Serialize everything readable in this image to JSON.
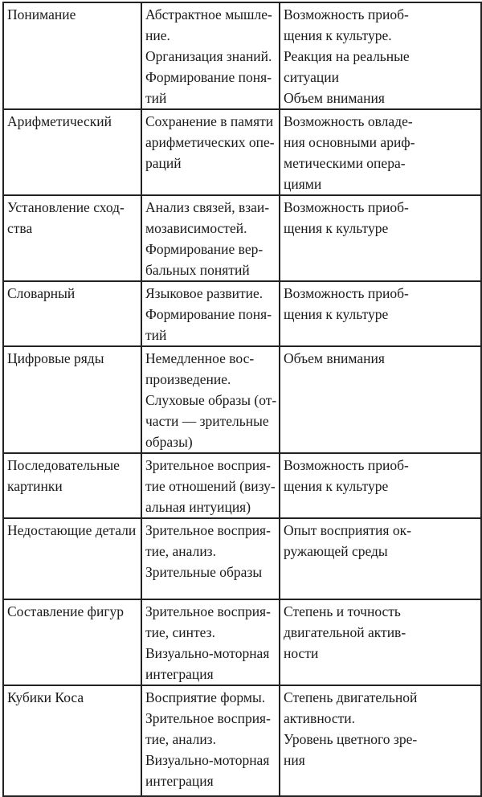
{
  "table": {
    "rows": [
      {
        "c1": [
          "Понимание"
        ],
        "c2": [
          "Абстрактное мышле-",
          "ние.",
          "Организация знаний.",
          "Формирование поня-",
          "тий"
        ],
        "c3": [
          "Возможность приоб-",
          "щения к культуре.",
          "Реакция на реальные",
          "ситуации",
          "Объем внимания"
        ]
      },
      {
        "c1": [
          "Арифметический"
        ],
        "c2": [
          "Сохранение в памяти",
          "арифметических опе-",
          "раций"
        ],
        "c3": [
          "Возможность овладе-",
          "ния основными ариф-",
          "метическими опера-",
          "циями"
        ]
      },
      {
        "c1": [
          "Установление сход-",
          "ства"
        ],
        "c2": [
          "Анализ связей, взаи-",
          "мозависимостей.",
          "Формирование вер-",
          "бальных понятий"
        ],
        "c3": [
          "Возможность приоб-",
          "щения к культуре"
        ]
      },
      {
        "c1": [
          "Словарный"
        ],
        "c2": [
          "Языковое развитие.",
          "Формирование поня-",
          "тий"
        ],
        "c3": [
          "Возможность приоб-",
          "щения к культуре"
        ]
      },
      {
        "c1": [
          "Цифровые ряды"
        ],
        "c2": [
          "Немедленное вос-",
          "произведение.",
          "Слуховые образы (от-",
          "части — зрительные",
          "образы)"
        ],
        "c3": [
          "Объем внимания"
        ]
      },
      {
        "c1": [
          "Последовательные",
          "картинки"
        ],
        "c2": [
          "Зрительное восприя-",
          "тие отношений (визу-",
          "альная интуиция)"
        ],
        "c3": [
          "Возможность приоб-",
          "щения к культуре"
        ]
      },
      {
        "c1": [
          "Недостающие детали"
        ],
        "c2": [
          "Зрительное восприя-",
          "тие, анализ.",
          "Зрительные образы"
        ],
        "c3": [
          "Опыт восприятия ок-",
          "ружающей среды"
        ]
      },
      {
        "c1": [
          "Составление фигур"
        ],
        "c2": [
          "Зрительное восприя-",
          "тие, синтез.",
          "Визуально-моторная",
          "интеграция"
        ],
        "c3": [
          "Степень и точность",
          "двигательной актив-",
          "ности"
        ]
      },
      {
        "c1": [
          "Кубики Коса"
        ],
        "c2": [
          "Восприятие формы.",
          "Зрительное восприя-",
          "тие, анализ.",
          "Визуально-моторная",
          "интеграция"
        ],
        "c3": [
          "Степень двигательной",
          "активности.",
          "Уровень цветного зре-",
          "ния"
        ]
      }
    ]
  }
}
